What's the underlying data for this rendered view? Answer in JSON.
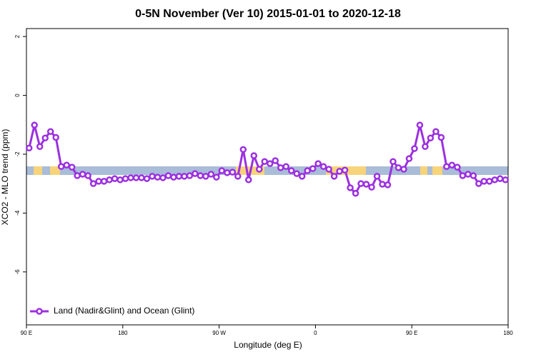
{
  "chart_data": {
    "type": "line",
    "title": "0-5N November (Ver 10)   2015-01-01 to 2020-12-18",
    "xlabel": "Longitude (deg E)",
    "ylabel": "XCO2 - MLO trend (ppm)",
    "xlim": [
      90,
      540
    ],
    "xticks": [
      {
        "value": 90,
        "label": "90 E"
      },
      180,
      {
        "value": 270,
        "label": "90 W"
      },
      {
        "value": 360,
        "label": "0"
      },
      {
        "value": 450,
        "label": "90 E"
      },
      {
        "value": 540,
        "label": "180"
      }
    ],
    "ylim": [
      -7.8,
      2.27
    ],
    "yticks": [
      2,
      0,
      -2,
      -4,
      -6
    ],
    "legend": "bottom-left",
    "series": [
      {
        "name": "Land (Nadir&Glint) and Ocean (Glint)",
        "color": "#9b30e0",
        "x": [
          92.5,
          97.5,
          102.5,
          107.5,
          112.5,
          117.5,
          122.5,
          127.5,
          132.5,
          137.5,
          142.5,
          147.5,
          152.5,
          157.5,
          162.5,
          167.5,
          172.5,
          177.5,
          182.5,
          187.5,
          192.5,
          197.5,
          202.5,
          207.5,
          212.5,
          217.5,
          222.5,
          227.5,
          232.5,
          237.5,
          242.5,
          247.5,
          252.5,
          257.5,
          262.5,
          267.5,
          272.5,
          277.5,
          282.5,
          287.5,
          292.5,
          297.5,
          302.5,
          307.5,
          312.5,
          317.5,
          322.5,
          327.5,
          332.5,
          337.5,
          342.5,
          347.5,
          352.5,
          357.5,
          362.5,
          367.5,
          372.5,
          377.5,
          382.5,
          387.5,
          392.5,
          397.5,
          402.5,
          407.5,
          412.5,
          417.5,
          422.5,
          427.5,
          432.5,
          437.5,
          442.5,
          447.5,
          452.5,
          457.5,
          462.5,
          467.5,
          472.5,
          477.5,
          482.5,
          487.5,
          492.5,
          497.5,
          502.5,
          507.5,
          512.5,
          517.5,
          522.5,
          527.5,
          532.5,
          537.5
        ],
        "values": [
          -1.79,
          -1.01,
          -1.74,
          -1.45,
          -1.23,
          -1.43,
          -2.42,
          -2.37,
          -2.44,
          -2.73,
          -2.68,
          -2.73,
          -3.0,
          -2.92,
          -2.92,
          -2.87,
          -2.83,
          -2.87,
          -2.83,
          -2.8,
          -2.8,
          -2.8,
          -2.83,
          -2.75,
          -2.78,
          -2.8,
          -2.73,
          -2.78,
          -2.75,
          -2.75,
          -2.73,
          -2.66,
          -2.73,
          -2.75,
          -2.68,
          -2.78,
          -2.56,
          -2.63,
          -2.61,
          -2.75,
          -1.84,
          -2.87,
          -2.05,
          -2.51,
          -2.25,
          -2.32,
          -2.22,
          -2.46,
          -2.42,
          -2.56,
          -2.66,
          -2.75,
          -2.56,
          -2.49,
          -2.32,
          -2.42,
          -2.51,
          -2.75,
          -2.58,
          -2.54,
          -3.14,
          -3.33,
          -3.0,
          -3.02,
          -3.12,
          -2.75,
          -3.02,
          -3.04,
          -2.25,
          -2.46,
          -2.51,
          -2.15,
          -1.81,
          -1.01,
          -1.74,
          -1.45,
          -1.23,
          -1.43,
          -2.42,
          -2.37,
          -2.44,
          -2.73,
          -2.68,
          -2.73,
          -3.0,
          -2.92,
          -2.92,
          -2.87,
          -2.83,
          -2.87
        ]
      }
    ]
  }
}
